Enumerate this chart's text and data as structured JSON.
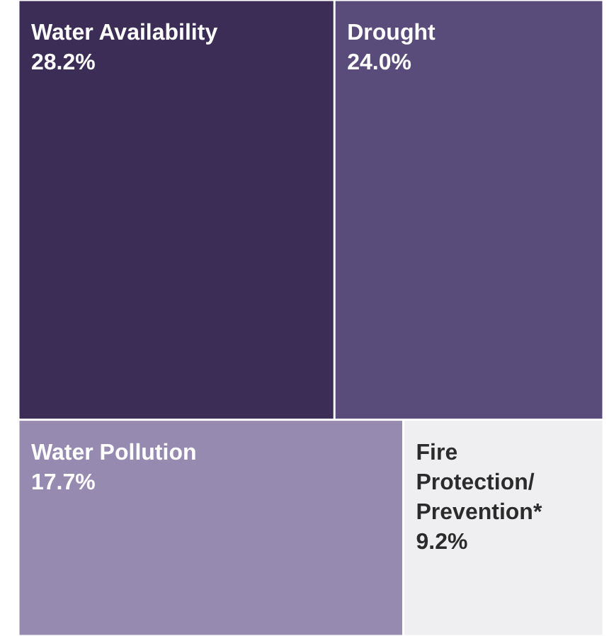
{
  "chart_data": {
    "type": "other",
    "categories": [
      "Water Availability",
      "Drought",
      "Water Pollution",
      "Fire Protection/ Prevention*"
    ],
    "values": [
      28.2,
      24.0,
      17.7,
      9.2
    ],
    "value_labels": [
      "28.2%",
      "24.0%",
      "17.7%",
      "9.2%"
    ],
    "colors": [
      "#3b2d55",
      "#5a4c7a",
      "#978ab1",
      "#efeef0"
    ]
  }
}
